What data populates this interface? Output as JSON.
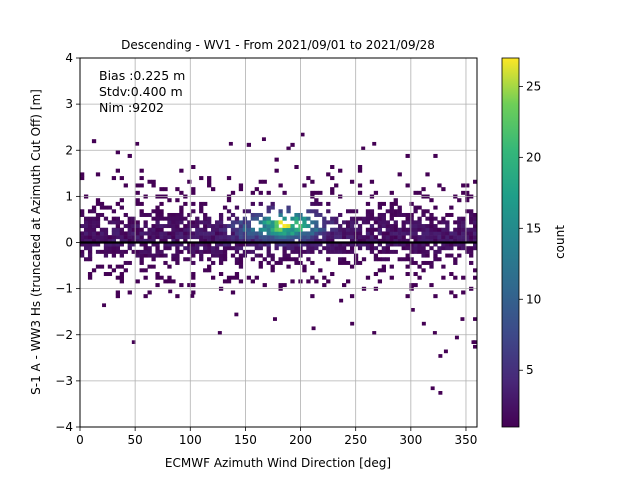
{
  "chart_data": {
    "type": "heatmap",
    "title": "Descending - WV1 - From 2021/09/01 to 2021/09/28",
    "xlabel": "ECMWF Azimuth Wind Direction [deg]",
    "ylabel": "S-1 A - WW3 Hs (truncated at Azimuth Cut Off) [m]",
    "xlim": [
      0,
      360
    ],
    "ylim": [
      -4,
      4
    ],
    "xticks": [
      "0",
      "50",
      "100",
      "150",
      "200",
      "250",
      "300",
      "350"
    ],
    "yticks": [
      "−4",
      "−3",
      "−2",
      "−1",
      "0",
      "1",
      "2",
      "3",
      "4"
    ],
    "grid": true,
    "zero_line": 0,
    "annotations": [
      "Bias :0.225 m",
      "Stdv:0.400 m",
      "Nim :9202"
    ],
    "colorbar": {
      "label": "count",
      "range": [
        1,
        27
      ],
      "ticks": [
        "5",
        "10",
        "15",
        "20",
        "25"
      ],
      "colormap": "viridis"
    },
    "density": {
      "bin_x_deg": 3.6,
      "bin_y_m": 0.08,
      "core_x_range": [
        0,
        360
      ],
      "core_y_range": [
        -0.8,
        1.0
      ],
      "peak": {
        "x": 185,
        "y": 0.35,
        "count": 27
      },
      "secondary_peak": {
        "x": 145,
        "y": 0.2,
        "count": 12
      },
      "outliers": [
        [
          47,
          -2.2
        ],
        [
          125,
          -2.0
        ],
        [
          140,
          -1.6
        ],
        [
          175,
          -1.7
        ],
        [
          210,
          -1.9
        ],
        [
          245,
          -1.8
        ],
        [
          300,
          -1.5
        ],
        [
          310,
          -1.8
        ],
        [
          320,
          -2.0
        ],
        [
          325,
          -2.5
        ],
        [
          330,
          -2.4
        ],
        [
          318,
          -3.2
        ],
        [
          325,
          -3.3
        ],
        [
          360,
          -2.2
        ],
        [
          360,
          -2.3
        ],
        [
          355,
          -2.2
        ],
        [
          358,
          -1.7
        ],
        [
          340,
          -2.1
        ],
        [
          345,
          -1.7
        ],
        [
          265,
          -2.0
        ],
        [
          50,
          2.1
        ],
        [
          135,
          2.1
        ],
        [
          165,
          2.2
        ],
        [
          200,
          2.3
        ],
        [
          255,
          2.0
        ],
        [
          265,
          2.1
        ],
        [
          20,
          -1.4
        ],
        [
          80,
          -1.1
        ],
        [
          100,
          -1.2
        ],
        [
          235,
          -1.3
        ]
      ]
    }
  }
}
